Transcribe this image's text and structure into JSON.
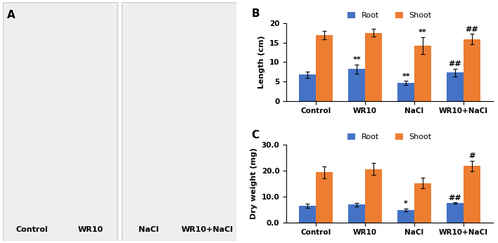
{
  "photo_panel": {
    "label": "A",
    "captions": [
      "Control",
      "WR10",
      "NaCl",
      "WR10+NaCl"
    ]
  },
  "chart_data": [
    {
      "type": "bar",
      "title": "B",
      "ylabel": "Length (cm)",
      "categories": [
        "Control",
        "WR10",
        "NaCl",
        "WR10+NaCl"
      ],
      "series": [
        {
          "name": "Root",
          "color": "#4472c4",
          "values": [
            6.7,
            8.2,
            4.6,
            7.3
          ],
          "errors": [
            0.9,
            1.2,
            0.5,
            1.0
          ],
          "annotations": [
            null,
            "**",
            "**",
            "##"
          ]
        },
        {
          "name": "Shoot",
          "color": "#ed7d31",
          "values": [
            16.9,
            17.5,
            14.2,
            15.9
          ],
          "errors": [
            1.1,
            1.0,
            2.2,
            1.3
          ],
          "annotations": [
            null,
            null,
            "**",
            "##"
          ]
        }
      ],
      "ylim": [
        0,
        20
      ],
      "yticks": [
        0,
        5,
        10,
        15,
        20
      ],
      "legend": "top"
    },
    {
      "type": "bar",
      "title": "C",
      "ylabel": "Dry weight (mg)",
      "categories": [
        "Control",
        "WR10",
        "NaCl",
        "WR10+NaCl"
      ],
      "series": [
        {
          "name": "Root",
          "color": "#4472c4",
          "values": [
            6.5,
            6.8,
            4.8,
            7.5
          ],
          "errors": [
            0.8,
            0.7,
            0.6,
            0.2
          ],
          "annotations": [
            null,
            null,
            "*",
            "##"
          ]
        },
        {
          "name": "Shoot",
          "color": "#ed7d31",
          "values": [
            19.3,
            20.6,
            15.1,
            21.8
          ],
          "errors": [
            2.3,
            2.3,
            2.0,
            2.0
          ],
          "annotations": [
            null,
            null,
            null,
            "#"
          ]
        }
      ],
      "ylim": [
        0,
        30
      ],
      "yticks": [
        {
          "value": 0,
          "label": "0.0"
        },
        {
          "value": 10,
          "label": "10.0"
        },
        {
          "value": 20,
          "label": "20.0"
        },
        {
          "value": 30,
          "label": "30.0"
        }
      ],
      "legend": "top"
    }
  ]
}
